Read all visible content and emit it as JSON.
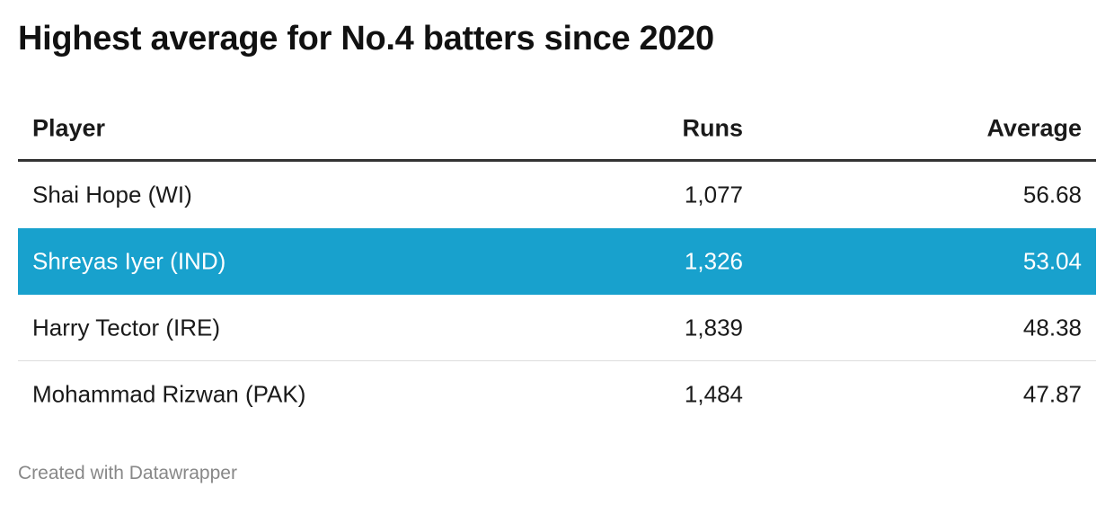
{
  "chart_data": {
    "type": "table",
    "title": "Highest average for No.4 batters since 2020",
    "columns": [
      "Player",
      "Runs",
      "Average"
    ],
    "rows": [
      {
        "player": "Shai Hope (WI)",
        "runs": "1,077",
        "average": "56.68",
        "highlighted": false
      },
      {
        "player": "Shreyas Iyer (IND)",
        "runs": "1,326",
        "average": "53.04",
        "highlighted": true
      },
      {
        "player": "Harry Tector (IRE)",
        "runs": "1,839",
        "average": "48.38",
        "highlighted": false
      },
      {
        "player": "Mohammad Rizwan (PAK)",
        "runs": "1,484",
        "average": "47.87",
        "highlighted": false
      }
    ],
    "highlight_color": "#18a1cd"
  },
  "footer": "Created with Datawrapper"
}
